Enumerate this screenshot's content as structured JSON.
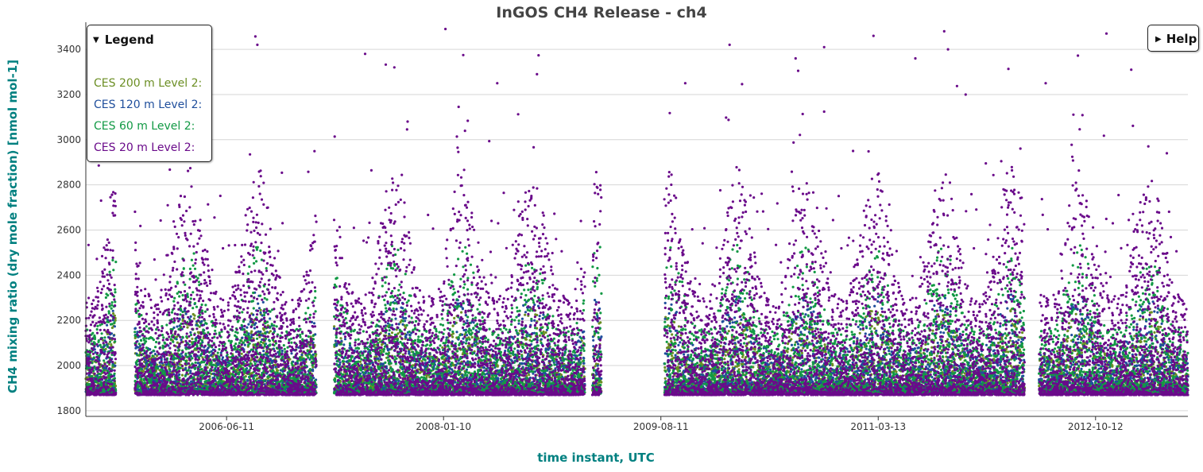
{
  "chart_data": {
    "type": "scatter",
    "title": "InGOS CH4 Release - ch4",
    "xlabel": "time instant, UTC",
    "ylabel": "CH4 mixing ratio (dry mole fraction) [nmol mol-1]",
    "x_ticks": [
      "2006-06-11",
      "2008-01-10",
      "2009-08-11",
      "2011-03-13",
      "2012-10-12"
    ],
    "x_range": [
      "2005-06-01",
      "2013-06-15"
    ],
    "y_ticks": [
      1800,
      2000,
      2200,
      2400,
      2600,
      2800,
      3000,
      3200,
      3400
    ],
    "ylim": [
      1775,
      3520
    ],
    "grid": true,
    "legend_position": "top-left",
    "data_gaps": [
      [
        "2005-08-20",
        "2005-10-10"
      ],
      [
        "2007-02-05",
        "2007-03-25"
      ],
      [
        "2009-01-20",
        "2009-02-10"
      ],
      [
        "2009-03-05",
        "2009-08-20"
      ],
      [
        "2012-04-05",
        "2012-05-15"
      ]
    ],
    "series": [
      {
        "name": "CES 200 m Level 2:",
        "color": "#6b8e23",
        "baseline": 1885,
        "upper_typical": 2150
      },
      {
        "name": "CES 120 m Level 2:",
        "color": "#1f4e9c",
        "baseline": 1880,
        "upper_typical": 2200
      },
      {
        "name": "CES 60 m Level 2:",
        "color": "#119944",
        "baseline": 1875,
        "upper_typical": 2350
      },
      {
        "name": "CES 20 m Level 2:",
        "color": "#6a0a8a",
        "baseline": 1870,
        "upper_typical": 2600
      }
    ],
    "sample_points": [
      [
        "2005-12-20",
        3130
      ],
      [
        "2006-03-15",
        3220
      ],
      [
        "2006-09-01",
        3420
      ],
      [
        "2007-06-15",
        3380
      ],
      [
        "2007-09-01",
        3320
      ],
      [
        "2008-01-15",
        3490
      ],
      [
        "2008-06-01",
        3250
      ],
      [
        "2008-09-15",
        3290
      ],
      [
        "2009-01-10",
        2640
      ],
      [
        "2009-10-15",
        3250
      ],
      [
        "2010-02-10",
        3420
      ],
      [
        "2010-08-05",
        3360
      ],
      [
        "2010-10-20",
        3410
      ],
      [
        "2011-06-20",
        3360
      ],
      [
        "2011-09-15",
        3400
      ],
      [
        "2011-11-01",
        3200
      ],
      [
        "2012-06-01",
        3250
      ],
      [
        "2012-11-10",
        3470
      ],
      [
        "2013-01-15",
        3310
      ],
      [
        "2013-04-20",
        2940
      ]
    ]
  },
  "legend": {
    "header": "Legend"
  },
  "help": {
    "label": "Help"
  }
}
